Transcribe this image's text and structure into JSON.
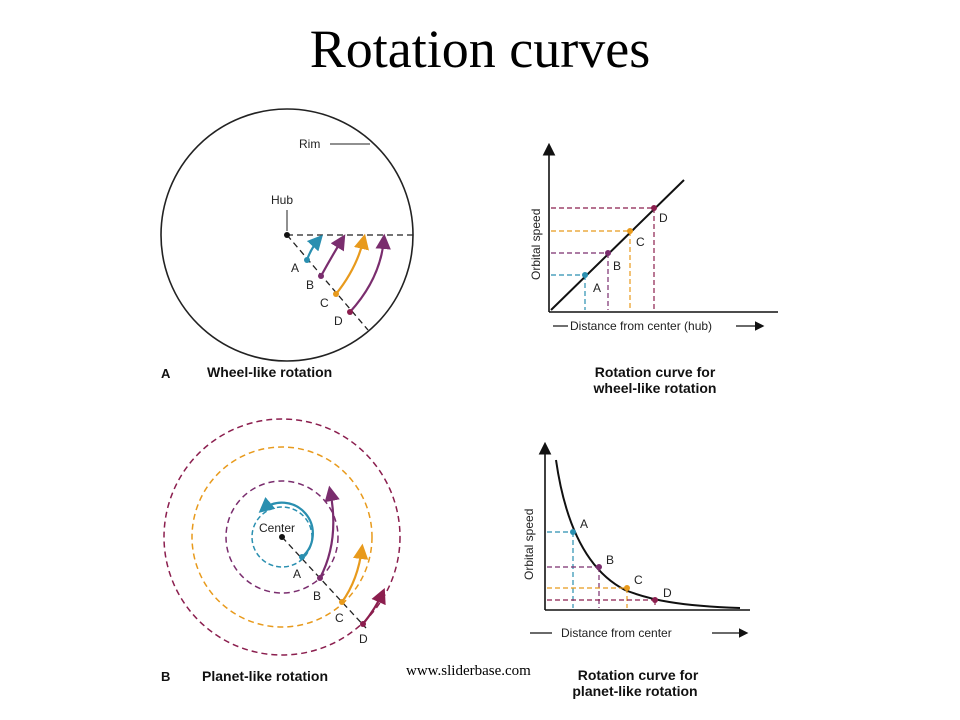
{
  "title": "Rotation curves",
  "watermark": "www.sliderbase.com",
  "colors": {
    "A": "#2a8fb0",
    "B": "#7a2d6e",
    "C": "#e89a1c",
    "D": "#8b1e4e"
  },
  "wheel": {
    "panel_letter": "A",
    "caption": "Wheel-like rotation",
    "rim_label": "Rim",
    "hub_label": "Hub",
    "points": [
      "A",
      "B",
      "C",
      "D"
    ]
  },
  "wheel_curve": {
    "caption_line1": "Rotation curve for",
    "caption_line2": "wheel-like rotation",
    "ylabel": "Orbital speed",
    "xlabel": "Distance from center (hub)",
    "points": [
      "A",
      "B",
      "C",
      "D"
    ]
  },
  "planet": {
    "panel_letter": "B",
    "caption": "Planet-like rotation",
    "center_label": "Center",
    "points": [
      "A",
      "B",
      "C",
      "D"
    ]
  },
  "planet_curve": {
    "caption_line1": "Rotation curve for",
    "caption_line2": "planet-like rotation",
    "ylabel": "Orbital speed",
    "xlabel": "Distance from center",
    "points": [
      "A",
      "B",
      "C",
      "D"
    ]
  }
}
